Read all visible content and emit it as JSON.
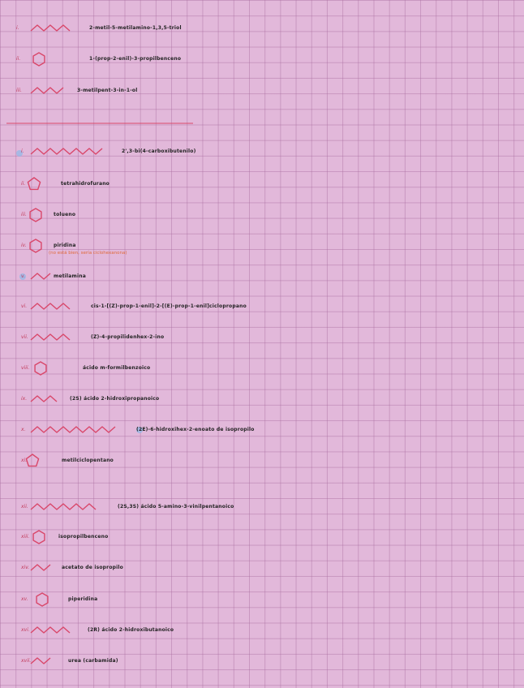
{
  "sections": [
    {
      "items": [
        {
          "numeral": "i.",
          "name": "2-metil-5-metilamino-1,3,5-triol"
        },
        {
          "numeral": "ii.",
          "name": "1-(prop-2-enil)-3-propilbenceno"
        },
        {
          "numeral": "iii.",
          "name": "3-metilpent-3-in-1-ol"
        }
      ]
    },
    {
      "items": [
        {
          "numeral": "i.",
          "name": "2',3-bi(4-carboxibutenilo)"
        },
        {
          "numeral": "ii.",
          "name": "tetrahidrofurano"
        },
        {
          "numeral": "iii.",
          "name": "tolueno"
        },
        {
          "numeral": "iv.",
          "name": "piridina",
          "note": "(no está bien, sería ciclohexanona)"
        },
        {
          "numeral": "v.",
          "name": "metilamina"
        },
        {
          "numeral": "vi.",
          "name": "cis-1-[(Z)-prop-1-enil]-2-[(E)-prop-1-enil]ciclopropano"
        },
        {
          "numeral": "vii.",
          "name": "(Z)-4-propilidenhex-2-ino"
        },
        {
          "numeral": "viii.",
          "name": "ácido m-formilbenzoico"
        },
        {
          "numeral": "ix.",
          "name": "(2S) ácido 2-hidroxipropanoico"
        },
        {
          "numeral": "x.",
          "name": "(2E)-6-hidroxihex-2-enoato de isopropilo"
        },
        {
          "numeral": "xi.",
          "name": "metilciclopentano"
        },
        {
          "numeral": "xii.",
          "name": "(2S,3S) ácido 5-amino-3-vinilpentanoico"
        },
        {
          "numeral": "xiii.",
          "name": "isopropilbenceno"
        },
        {
          "numeral": "xiv.",
          "name": "acetato de isopropilo"
        },
        {
          "numeral": "xv.",
          "name": "piperidina"
        },
        {
          "numeral": "xvi.",
          "name": "(2R) ácido 2-hidroxibutanoico"
        },
        {
          "numeral": "xvii.",
          "name": "urea (carbamida)"
        }
      ]
    }
  ]
}
